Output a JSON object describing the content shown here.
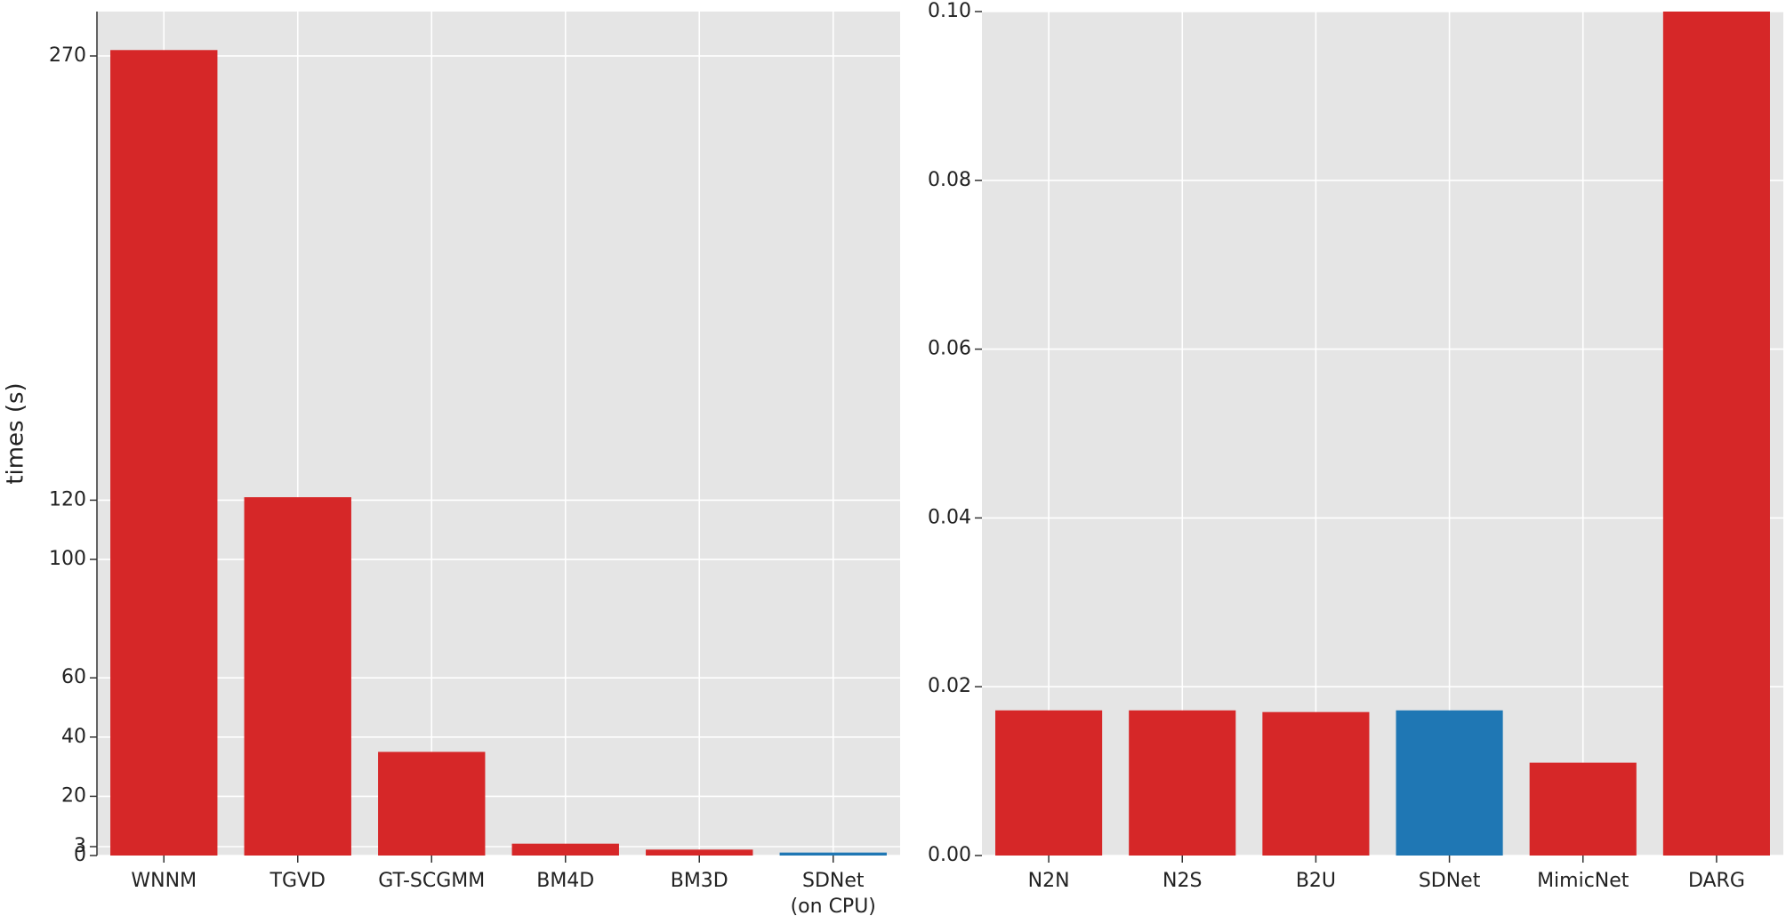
{
  "chart_data": [
    {
      "type": "bar",
      "ylabel": "times (s)",
      "categories": [
        "WNNM",
        "TGVD",
        "GT-SCGMM",
        "BM4D",
        "BM3D",
        "SDNet\n(on CPU)"
      ],
      "values": [
        272,
        121,
        35,
        4,
        2,
        1
      ],
      "colors": [
        "#d62728",
        "#d62728",
        "#d62728",
        "#d62728",
        "#d62728",
        "#1f77b4"
      ],
      "ylim": [
        0,
        285
      ],
      "yticks": [
        0,
        3,
        20,
        40,
        60,
        100,
        120,
        270
      ],
      "grid": true
    },
    {
      "type": "bar",
      "categories": [
        "N2N",
        "N2S",
        "B2U",
        "SDNet",
        "MimicNet",
        "DARG"
      ],
      "values": [
        0.0172,
        0.0172,
        0.017,
        0.0172,
        0.011,
        0.1
      ],
      "colors": [
        "#d62728",
        "#d62728",
        "#d62728",
        "#1f77b4",
        "#d62728",
        "#d62728"
      ],
      "ylim": [
        0,
        0.1
      ],
      "yticks": [
        {
          "value": 0,
          "label": "0.00"
        },
        {
          "value": 0.02,
          "label": "0.02"
        },
        {
          "value": 0.04,
          "label": "0.04"
        },
        {
          "value": 0.06,
          "label": "0.06"
        },
        {
          "value": 0.08,
          "label": "0.08"
        },
        {
          "value": 0.1,
          "label": "0.10"
        }
      ],
      "grid": true
    }
  ]
}
